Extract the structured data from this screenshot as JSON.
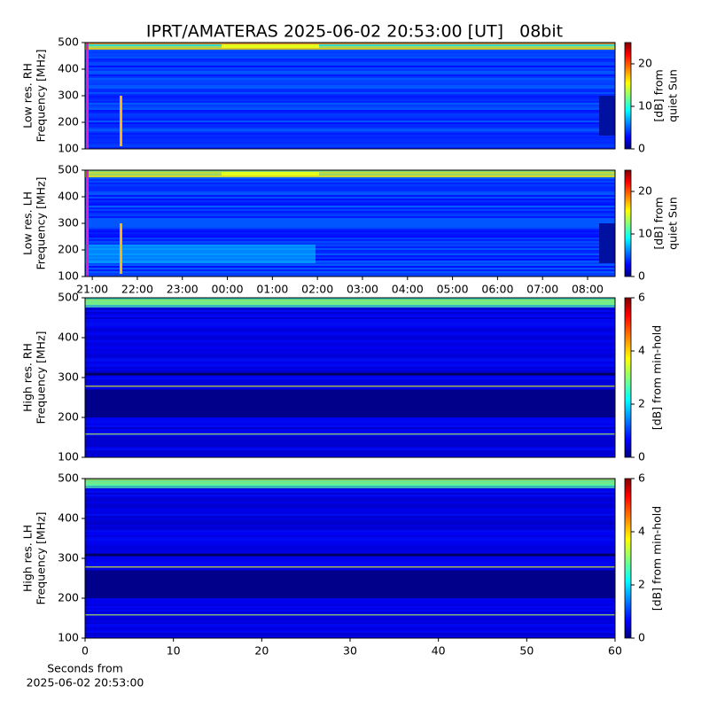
{
  "chart_data": [
    {
      "type": "heatmap",
      "title": "IPRT/AMATERAS 2025-06-02 20:53:00 [UT]   08bit",
      "ylabel": [
        "Low res. RH",
        "Frequency [MHz]"
      ],
      "ylim": [
        100,
        500
      ],
      "yticks": [
        100,
        200,
        300,
        400,
        500
      ],
      "xlim": [
        20.84,
        32.61
      ],
      "colorbar": {
        "label": [
          "[dB] from",
          "quiet Sun"
        ],
        "lim": [
          0,
          25
        ],
        "ticks": [
          0,
          10,
          20
        ]
      }
    },
    {
      "type": "heatmap",
      "ylabel": [
        "Low res. LH",
        "Frequency [MHz]"
      ],
      "ylim": [
        100,
        500
      ],
      "yticks": [
        100,
        200,
        300,
        400,
        500
      ],
      "xlim": [
        20.84,
        32.61
      ],
      "xticks": [
        {
          "value": 21,
          "label": "21:00"
        },
        {
          "value": 22,
          "label": "22:00"
        },
        {
          "value": 23,
          "label": "23:00"
        },
        {
          "value": 24,
          "label": "00:00"
        },
        {
          "value": 25,
          "label": "01:00"
        },
        {
          "value": 26,
          "label": "02:00"
        },
        {
          "value": 27,
          "label": "03:00"
        },
        {
          "value": 28,
          "label": "04:00"
        },
        {
          "value": 29,
          "label": "05:00"
        },
        {
          "value": 30,
          "label": "06:00"
        },
        {
          "value": 31,
          "label": "07:00"
        },
        {
          "value": 32,
          "label": "08:00"
        }
      ],
      "colorbar": {
        "label": [
          "[dB] from",
          "quiet Sun"
        ],
        "lim": [
          0,
          25
        ],
        "ticks": [
          0,
          10,
          20
        ]
      }
    },
    {
      "type": "heatmap",
      "ylabel": [
        "High res. RH",
        "Frequency [MHz]"
      ],
      "ylim": [
        100,
        500
      ],
      "yticks": [
        100,
        200,
        300,
        400,
        500
      ],
      "xlim": [
        0,
        60
      ],
      "colorbar": {
        "label": [
          "[dB] from min-hold"
        ],
        "lim": [
          0,
          6
        ],
        "ticks": [
          0,
          2,
          4,
          6
        ]
      }
    },
    {
      "type": "heatmap",
      "ylabel": [
        "High res. LH",
        "Frequency [MHz]"
      ],
      "ylim": [
        100,
        500
      ],
      "yticks": [
        100,
        200,
        300,
        400,
        500
      ],
      "xlim": [
        0,
        60
      ],
      "xticks": [
        0,
        10,
        20,
        30,
        40,
        50,
        60
      ],
      "xlabel": [
        "Seconds from",
        "2025-06-02 20:53:00"
      ],
      "colorbar": {
        "label": [
          "[dB] from min-hold"
        ],
        "lim": [
          0,
          6
        ],
        "ticks": [
          0,
          2,
          4,
          6
        ]
      }
    }
  ]
}
